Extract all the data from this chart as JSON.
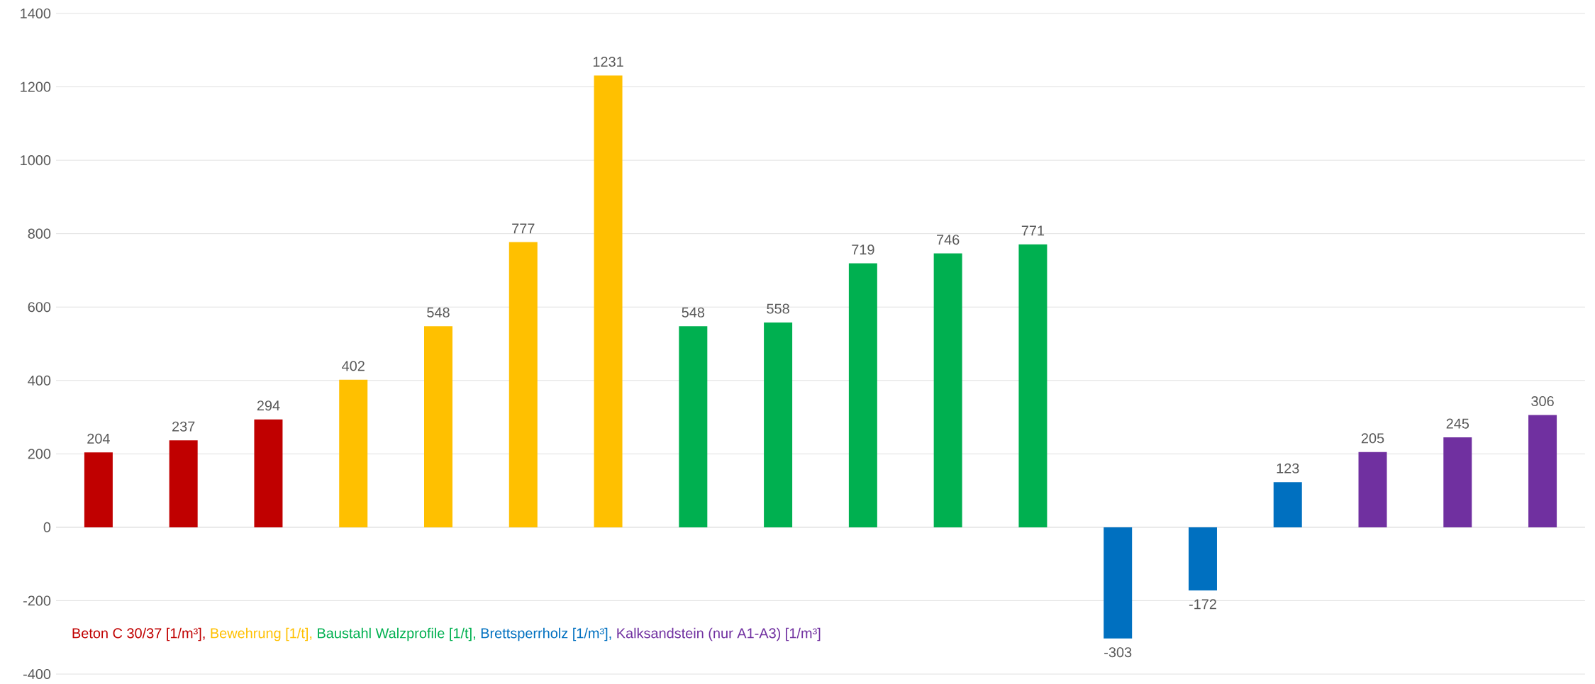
{
  "chart_data": {
    "type": "bar",
    "categories": [
      null,
      null,
      null,
      null,
      null,
      null,
      null,
      null,
      null,
      null,
      null,
      null,
      null,
      null,
      null,
      null,
      null,
      null
    ],
    "series": [
      {
        "name": "Beton C 30/37 [1/m³],",
        "color": "#c00000",
        "values": [
          204,
          237,
          294,
          null,
          null,
          null,
          null,
          null,
          null,
          null,
          null,
          null,
          null,
          null,
          null,
          null,
          null,
          null
        ]
      },
      {
        "name": "Bewehrung [1/t],",
        "color": "#ffc000",
        "values": [
          null,
          null,
          null,
          402,
          548,
          777,
          1231,
          null,
          null,
          null,
          null,
          null,
          null,
          null,
          null,
          null,
          null,
          null
        ]
      },
      {
        "name": "Baustahl Walzprofile [1/t],",
        "color": "#00b050",
        "values": [
          null,
          null,
          null,
          null,
          null,
          null,
          null,
          548,
          558,
          719,
          746,
          771,
          null,
          null,
          null,
          null,
          null,
          null
        ]
      },
      {
        "name": "Brettsperrholz [1/m³],",
        "color": "#0070c0",
        "values": [
          null,
          null,
          null,
          null,
          null,
          null,
          null,
          null,
          null,
          null,
          null,
          null,
          -303,
          -172,
          123,
          null,
          null,
          null
        ]
      },
      {
        "name": "Kalksandstein (nur A1-A3) [1/m³]",
        "color": "#7030a0",
        "values": [
          null,
          null,
          null,
          null,
          null,
          null,
          null,
          null,
          null,
          null,
          null,
          null,
          null,
          null,
          null,
          205,
          245,
          306
        ]
      }
    ],
    "ylim": [
      -400,
      1400
    ],
    "yticks": [
      -400,
      -200,
      0,
      200,
      400,
      600,
      800,
      1000,
      1200,
      1400
    ],
    "grid": "y",
    "legend": "bottom left",
    "data_labels": true
  }
}
